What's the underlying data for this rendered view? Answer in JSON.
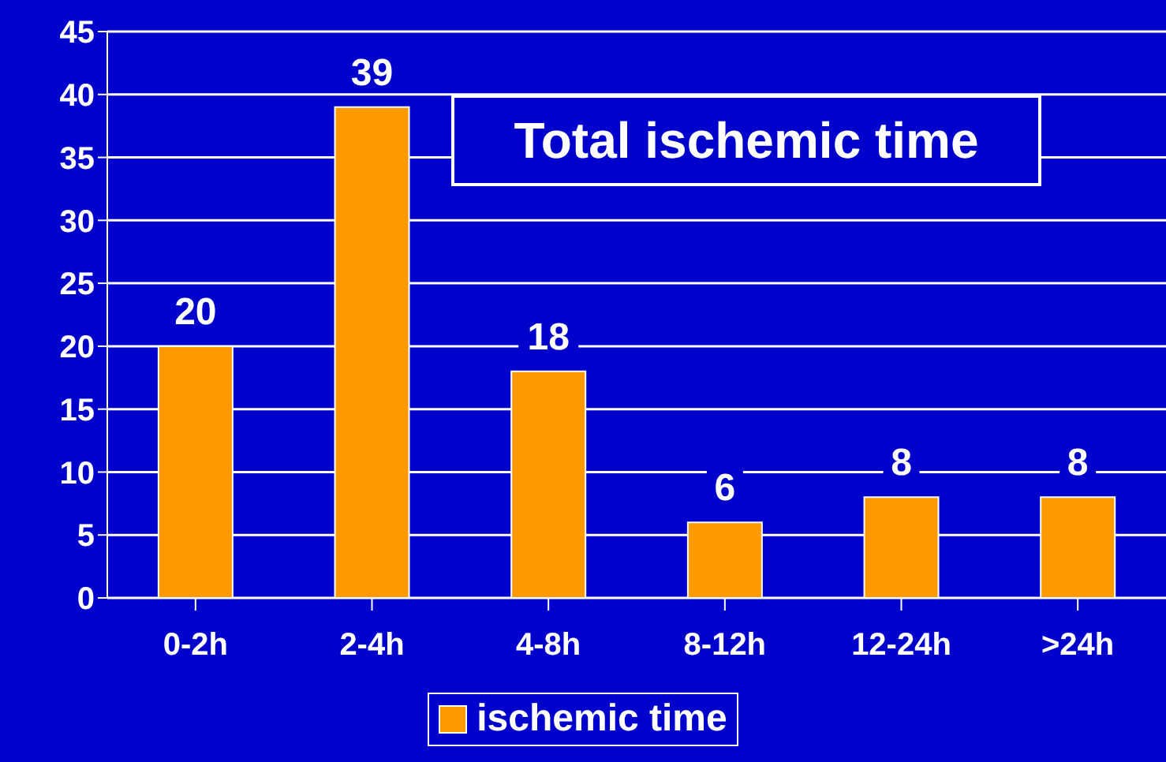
{
  "chart_data": {
    "type": "bar",
    "title": "Total ischemic time",
    "categories": [
      "0-2h",
      "2-4h",
      "4-8h",
      "8-12h",
      "12-24h",
      ">24h"
    ],
    "series": [
      {
        "name": "ischemic time",
        "color": "#ff9900",
        "values": [
          20,
          39,
          18,
          6,
          8,
          8
        ]
      }
    ],
    "ylim": [
      0,
      45
    ],
    "yticks": [
      0,
      5,
      10,
      15,
      20,
      25,
      30,
      35,
      40,
      45
    ],
    "grid": "y",
    "legend": "bottom",
    "data_labels": true
  }
}
